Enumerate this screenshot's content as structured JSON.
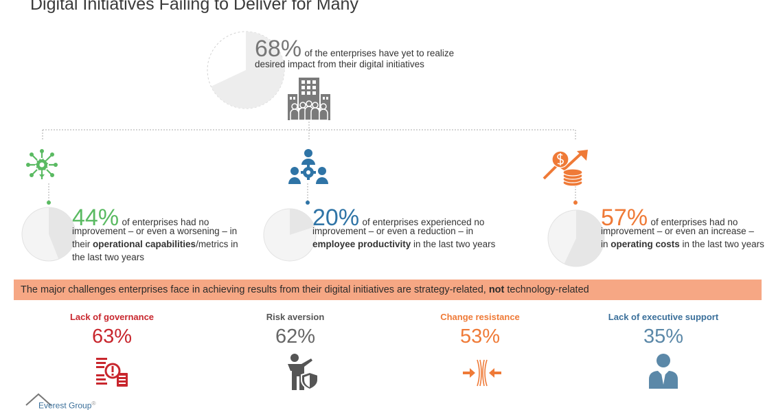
{
  "title": "Digital Initiatives Failing to Deliver for Many",
  "colors": {
    "green": "#5aba62",
    "blue": "#2f74a6",
    "orange": "#ef7a37",
    "red": "#c8262d",
    "gray": "#666666",
    "slate": "#5b88a8",
    "banner": "#f6a784",
    "pie_fill": "#ededed",
    "pie_stroke": "#d2d2d2"
  },
  "top_stat": {
    "value": "68%",
    "fraction": 0.68,
    "line1": "of the enterprises have yet to realize",
    "line2": "desired  impact from their digital initiatives",
    "icon": "enterprise-building-icon"
  },
  "stats": [
    {
      "value": "44%",
      "fraction": 0.44,
      "icon": "network-gear-icon",
      "line1": "of enterprises had no",
      "line2": "improvement – or even a worsening – in",
      "line3_pre": "their ",
      "line3_bold": "operational capabilities",
      "line3_post": "/metrics in",
      "line4": "the last two years"
    },
    {
      "value": "20%",
      "fraction": 0.2,
      "icon": "team-gear-icon",
      "line1": "of enterprises experienced no",
      "line2": "improvement – or even a reduction – in",
      "line3_bold": "employee productivity",
      "line3_post": " in the last two years"
    },
    {
      "value": "57%",
      "fraction": 0.57,
      "icon": "coins-arrow-up-icon",
      "line1": "of enterprises had no",
      "line2": "improvement – or even an increase –",
      "line3_pre": "in ",
      "line3_bold": "operating costs",
      "line3_post": " in the last two years"
    }
  ],
  "banner": {
    "pre": "The major challenges enterprises face in achieving results from their digital initiatives are strategy-related, ",
    "bold": "not",
    "post": " technology-related"
  },
  "challenges": [
    {
      "label": "Lack of governance",
      "value": "63%",
      "icon": "document-warning-icon"
    },
    {
      "label": "Risk aversion",
      "value": "62%",
      "icon": "person-shield-icon"
    },
    {
      "label": "Change resistance",
      "value": "53%",
      "icon": "pressure-arrows-icon"
    },
    {
      "label": "Lack of executive support",
      "value": "35%",
      "icon": "executive-icon"
    }
  ],
  "footer": {
    "brand": "Everest Group",
    "mark": "®"
  }
}
